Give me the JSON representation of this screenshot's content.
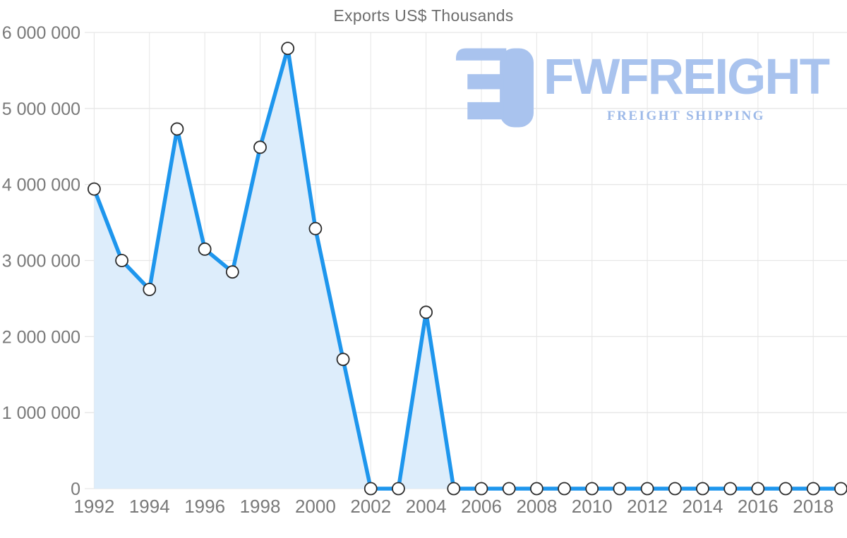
{
  "chart_data": {
    "type": "area",
    "title": "Exports US$ Thousands",
    "xlabel": "",
    "ylabel": "",
    "x": [
      1992,
      1993,
      1994,
      1995,
      1996,
      1997,
      1998,
      1999,
      2000,
      2001,
      2002,
      2003,
      2004,
      2005,
      2006,
      2007,
      2008,
      2009,
      2010,
      2011,
      2012,
      2013,
      2014,
      2015,
      2016,
      2017,
      2018,
      2019
    ],
    "series": [
      {
        "name": "Exports US$ Thousands",
        "values": [
          3940000,
          3000000,
          2620000,
          4730000,
          3150000,
          2850000,
          4490000,
          5790000,
          3420000,
          1700000,
          0,
          0,
          2320000,
          0,
          0,
          0,
          0,
          0,
          0,
          0,
          0,
          0,
          0,
          0,
          0,
          0,
          0,
          0
        ]
      }
    ],
    "ylim": [
      0,
      6000000
    ],
    "grid": true,
    "legend": "none",
    "y_ticks": [
      {
        "value": 0,
        "label": "0"
      },
      {
        "value": 1000000,
        "label": "1 000 000"
      },
      {
        "value": 2000000,
        "label": "2 000 000"
      },
      {
        "value": 3000000,
        "label": "3 000 000"
      },
      {
        "value": 4000000,
        "label": "4 000 000"
      },
      {
        "value": 5000000,
        "label": "5 000 000"
      },
      {
        "value": 6000000,
        "label": "6 000 000"
      }
    ],
    "x_tick_years": [
      1992,
      1994,
      1996,
      1998,
      2000,
      2002,
      2004,
      2006,
      2008,
      2010,
      2012,
      2014,
      2016,
      2018
    ],
    "styles": {
      "line_color": "#1e96ed",
      "area_fill": "#ddedfb",
      "marker_fill": "#ffffff",
      "marker_stroke": "#2b2b2b",
      "grid_color": "#e7e7e7",
      "tick_label_color": "#797979",
      "title_color": "#6d6d6d"
    }
  },
  "logo": {
    "wordmark": "FWFREIGHT",
    "subtitle": "FREIGHT SHIPPING",
    "color": "#a9c3ee",
    "subtitle_color": "#9db9e8"
  }
}
